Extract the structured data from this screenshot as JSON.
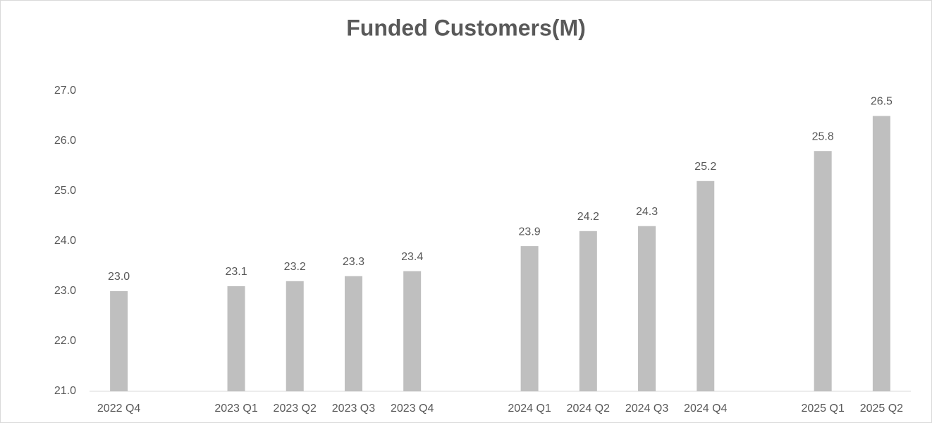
{
  "chart_data": {
    "type": "bar",
    "title": "Funded Customers(M)",
    "categories": [
      "2022 Q4",
      null,
      "2023 Q1",
      "2023 Q2",
      "2023 Q3",
      "2023 Q4",
      null,
      "2024 Q1",
      "2024 Q2",
      "2024 Q3",
      "2024 Q4",
      null,
      "2025 Q1",
      "2025 Q2"
    ],
    "values": [
      23.0,
      null,
      23.1,
      23.2,
      23.3,
      23.4,
      null,
      23.9,
      24.2,
      24.3,
      25.2,
      null,
      25.8,
      26.5
    ],
    "value_labels": [
      "23.0",
      null,
      "23.1",
      "23.2",
      "23.3",
      "23.4",
      null,
      "23.9",
      "24.2",
      "24.3",
      "25.2",
      null,
      "25.8",
      "26.5"
    ],
    "color": "#bfbfbf",
    "ylim": [
      21,
      27
    ],
    "yticks": [
      {
        "value": 21,
        "label": "21.0"
      },
      {
        "value": 22,
        "label": "22.0"
      },
      {
        "value": 23,
        "label": "23.0"
      },
      {
        "value": 24,
        "label": "24.0"
      },
      {
        "value": 25,
        "label": "25.0"
      },
      {
        "value": 26,
        "label": "26.0"
      },
      {
        "value": 27,
        "label": "27.0"
      }
    ],
    "grid": false
  }
}
